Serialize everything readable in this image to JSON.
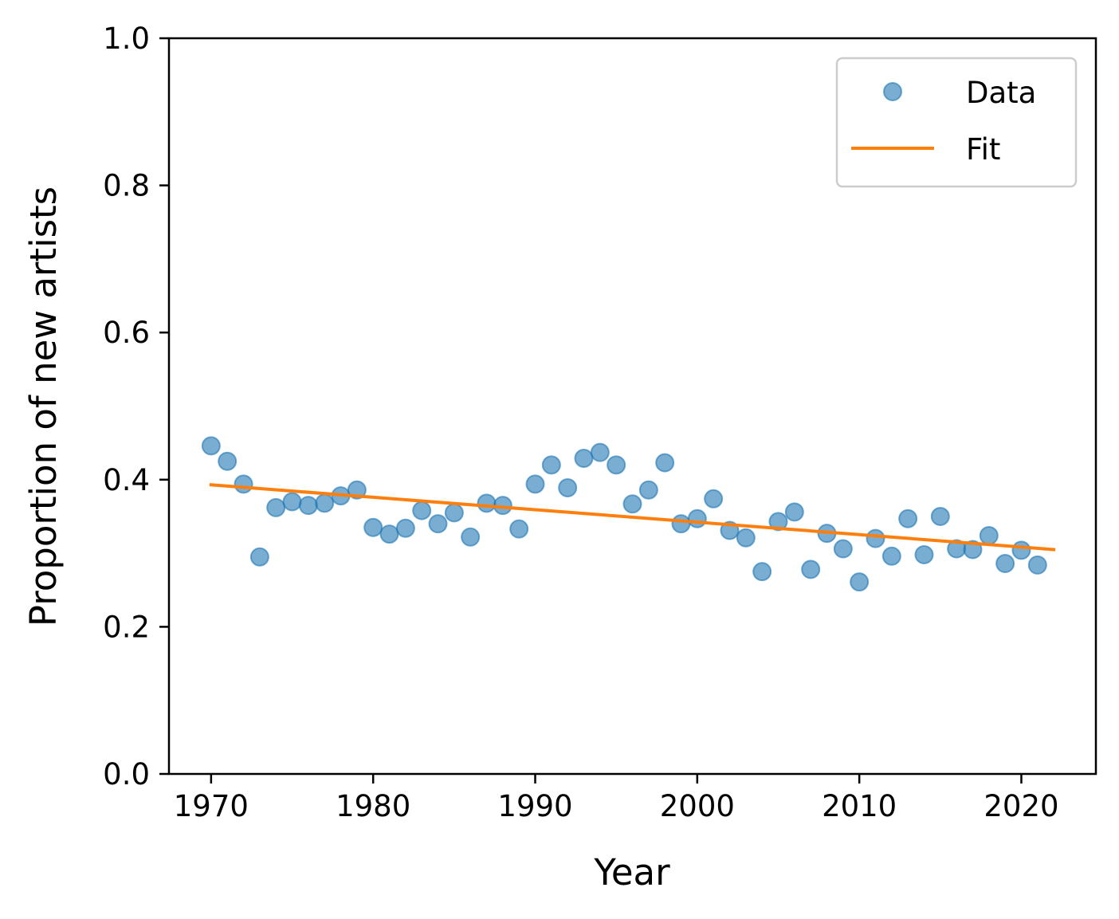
{
  "chart_data": {
    "type": "scatter",
    "xlabel": "Year",
    "ylabel": "Proportion of new artists",
    "xlim": [
      1967.4,
      2024.6
    ],
    "ylim": [
      0.0,
      1.0
    ],
    "xticks": [
      "1970",
      "1980",
      "1990",
      "2000",
      "2010",
      "2020"
    ],
    "xtick_values": [
      1970,
      1980,
      1990,
      2000,
      2010,
      2020
    ],
    "yticks": [
      "0.0",
      "0.2",
      "0.4",
      "0.6",
      "0.8",
      "1.0"
    ],
    "ytick_values": [
      0.0,
      0.2,
      0.4,
      0.6,
      0.8,
      1.0
    ],
    "grid": false,
    "legend_position": "top-right",
    "legend": [
      "Data",
      "Fit"
    ],
    "series": [
      {
        "name": "Data",
        "kind": "scatter",
        "color": "#1f77b4",
        "x": [
          1970,
          1971,
          1972,
          1973,
          1974,
          1975,
          1976,
          1977,
          1978,
          1979,
          1980,
          1981,
          1982,
          1983,
          1984,
          1985,
          1986,
          1987,
          1988,
          1989,
          1990,
          1991,
          1992,
          1993,
          1994,
          1995,
          1996,
          1997,
          1998,
          1999,
          2000,
          2001,
          2002,
          2003,
          2004,
          2005,
          2006,
          2007,
          2008,
          2009,
          2010,
          2011,
          2012,
          2013,
          2014,
          2015,
          2016,
          2017,
          2018,
          2019,
          2020,
          2021
        ],
        "y": [
          0.446,
          0.425,
          0.394,
          0.295,
          0.362,
          0.37,
          0.365,
          0.368,
          0.378,
          0.386,
          0.335,
          0.326,
          0.334,
          0.358,
          0.34,
          0.355,
          0.322,
          0.368,
          0.365,
          0.333,
          0.394,
          0.42,
          0.389,
          0.429,
          0.437,
          0.42,
          0.367,
          0.386,
          0.423,
          0.34,
          0.347,
          0.374,
          0.331,
          0.321,
          0.275,
          0.343,
          0.356,
          0.278,
          0.327,
          0.306,
          0.261,
          0.32,
          0.296,
          0.347,
          0.298,
          0.35,
          0.306,
          0.305,
          0.324,
          0.286,
          0.304,
          0.284
        ]
      },
      {
        "name": "Fit",
        "kind": "line",
        "color": "#ff7f0e",
        "x": [
          1970,
          2022
        ],
        "y": [
          0.393,
          0.305
        ]
      }
    ]
  }
}
